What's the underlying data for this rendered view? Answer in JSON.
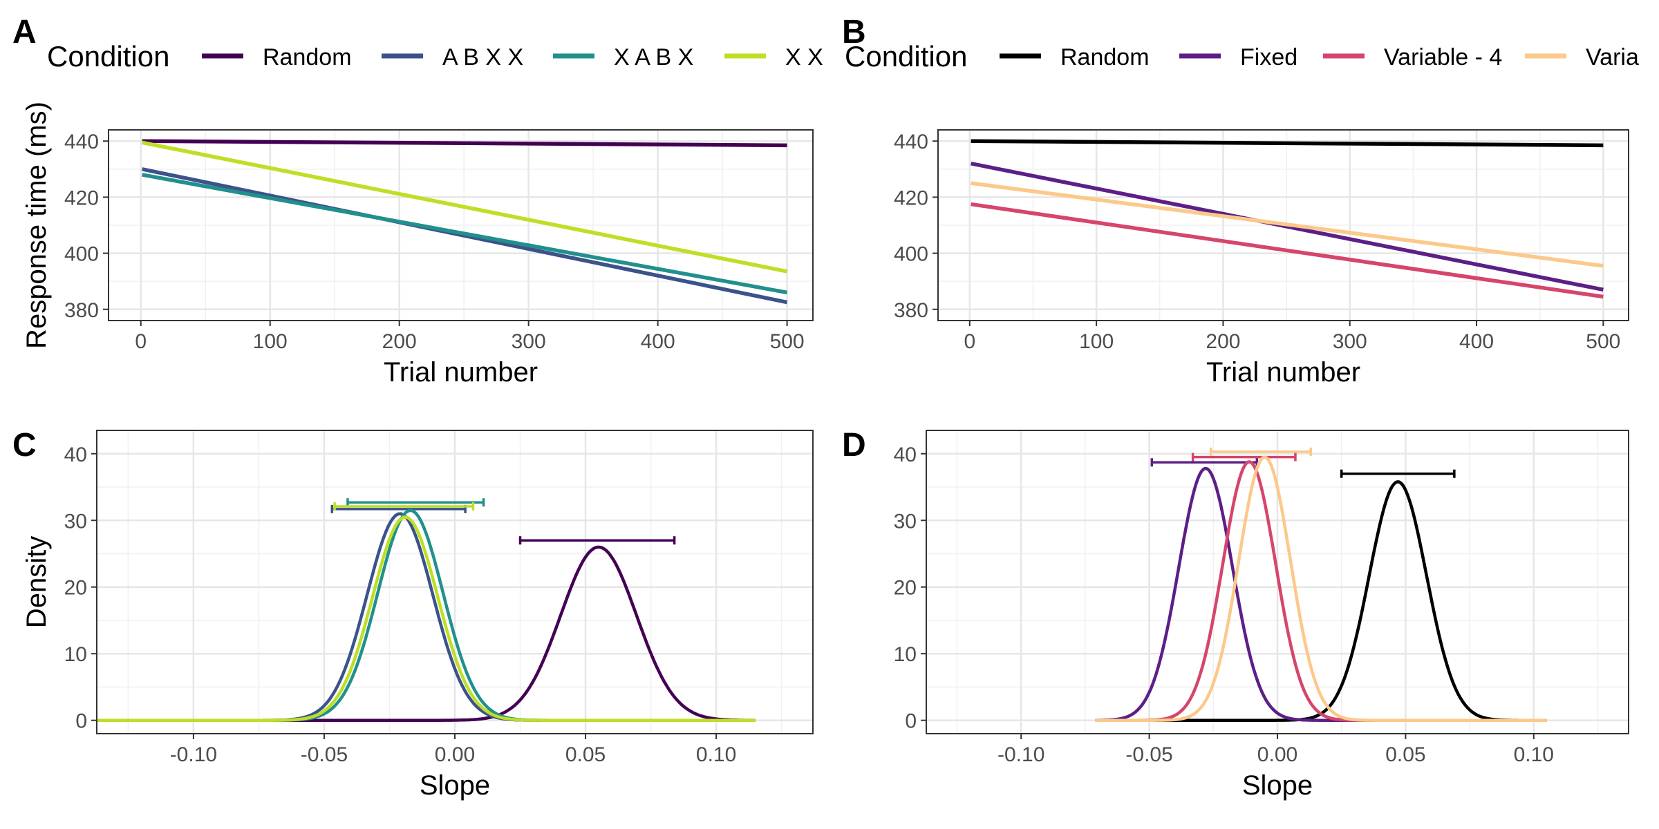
{
  "figure": {
    "panel_labels": [
      "A",
      "B",
      "C",
      "D"
    ],
    "legend_title": "Condition"
  },
  "chart_data": [
    {
      "panel": "A",
      "type": "line",
      "xlabel": "Trial number",
      "ylabel": "Response time (ms)",
      "xlim": [
        -25,
        520
      ],
      "ylim": [
        376,
        444
      ],
      "xticks": [
        0,
        100,
        200,
        300,
        400,
        500
      ],
      "xtick_labels": [
        "0",
        "100",
        "200",
        "300",
        "400",
        "500"
      ],
      "yticks": [
        380,
        400,
        420,
        440
      ],
      "ytick_labels": [
        "380",
        "400",
        "420",
        "440"
      ],
      "grid": true,
      "legend": {
        "title": "Condition",
        "placement": "top",
        "entries": [
          "Random",
          "A B X X",
          "X A B X",
          "X X"
        ]
      },
      "series": [
        {
          "name": "Random",
          "color": "#440154",
          "x": [
            1,
            500
          ],
          "y": [
            440,
            438.5
          ]
        },
        {
          "name": "A B X X",
          "color": "#3b528b",
          "x": [
            1,
            500
          ],
          "y": [
            430,
            382.5
          ]
        },
        {
          "name": "X A B X",
          "color": "#21908c",
          "x": [
            1,
            500
          ],
          "y": [
            428,
            386
          ]
        },
        {
          "name": "X X",
          "color": "#bddf26",
          "x": [
            1,
            500
          ],
          "y": [
            439.5,
            393.5
          ]
        }
      ]
    },
    {
      "panel": "B",
      "type": "line",
      "xlabel": "Trial number",
      "ylabel": "",
      "xlim": [
        -25,
        520
      ],
      "ylim": [
        376,
        444
      ],
      "xticks": [
        0,
        100,
        200,
        300,
        400,
        500
      ],
      "xtick_labels": [
        "0",
        "100",
        "200",
        "300",
        "400",
        "500"
      ],
      "yticks": [
        380,
        400,
        420,
        440
      ],
      "ytick_labels": [
        "380",
        "400",
        "420",
        "440"
      ],
      "grid": true,
      "legend": {
        "title": "Condition",
        "placement": "top",
        "entries": [
          "Random",
          "Fixed",
          "Variable - 4",
          "Varia"
        ]
      },
      "series": [
        {
          "name": "Random",
          "color": "#000000",
          "x": [
            1,
            500
          ],
          "y": [
            440,
            438.5
          ]
        },
        {
          "name": "Fixed",
          "color": "#5c1f87",
          "x": [
            1,
            500
          ],
          "y": [
            432,
            387
          ]
        },
        {
          "name": "Variable - 4",
          "color": "#d6456c",
          "x": [
            1,
            500
          ],
          "y": [
            417.5,
            384.5
          ]
        },
        {
          "name": "Varia",
          "color": "#fbc98a",
          "x": [
            1,
            500
          ],
          "y": [
            425,
            395.5
          ]
        }
      ]
    },
    {
      "panel": "C",
      "type": "line",
      "xlabel": "Slope",
      "ylabel": "Density",
      "xlim": [
        -0.137,
        0.137
      ],
      "ylim": [
        -2,
        43.5
      ],
      "xticks": [
        -0.1,
        -0.05,
        0,
        0.05,
        0.1
      ],
      "xtick_labels": [
        "-0.10",
        "-0.05",
        "0.00",
        "0.05",
        "0.10"
      ],
      "yticks": [
        0,
        10,
        20,
        30,
        40
      ],
      "ytick_labels": [
        "0",
        "10",
        "20",
        "30",
        "40"
      ],
      "grid": true,
      "x_range": [
        -0.137,
        0.115
      ],
      "series": [
        {
          "name": "Random",
          "color": "#440154",
          "mean": 0.055,
          "sd": 0.0145,
          "peak": 26,
          "interval": [
            0.025,
            0.084
          ],
          "interval_y": 27
        },
        {
          "name": "A B X X",
          "color": "#3b528b",
          "mean": -0.021,
          "sd": 0.0126,
          "peak": 31,
          "interval": [
            -0.047,
            0.004
          ],
          "interval_y": 31.7
        },
        {
          "name": "X A B X",
          "color": "#21908c",
          "mean": -0.017,
          "sd": 0.0125,
          "peak": 31.5,
          "interval": [
            -0.041,
            0.011
          ],
          "interval_y": 32.7
        },
        {
          "name": "X X",
          "color": "#bddf26",
          "mean": -0.019,
          "sd": 0.0125,
          "peak": 30.5,
          "interval": [
            -0.046,
            0.007
          ],
          "interval_y": 32.1
        }
      ]
    },
    {
      "panel": "D",
      "type": "line",
      "xlabel": "Slope",
      "ylabel": "",
      "xlim": [
        -0.137,
        0.137
      ],
      "ylim": [
        -2,
        43.5
      ],
      "xticks": [
        -0.1,
        -0.05,
        0,
        0.05,
        0.1
      ],
      "xtick_labels": [
        "-0.10",
        "-0.05",
        "0.00",
        "0.05",
        "0.10"
      ],
      "yticks": [
        0,
        10,
        20,
        30,
        40
      ],
      "ytick_labels": [
        "0",
        "10",
        "20",
        "30",
        "40"
      ],
      "grid": true,
      "x_range": [
        -0.071,
        0.105
      ],
      "series": [
        {
          "name": "Random",
          "color": "#000000",
          "mean": 0.047,
          "sd": 0.0112,
          "peak": 35.8,
          "interval": [
            0.025,
            0.069
          ],
          "interval_y": 37
        },
        {
          "name": "Fixed",
          "color": "#5c1f87",
          "mean": -0.028,
          "sd": 0.0105,
          "peak": 37.8,
          "interval": [
            -0.049,
            -0.008
          ],
          "interval_y": 38.7
        },
        {
          "name": "Variable - 4",
          "color": "#d6456c",
          "mean": -0.011,
          "sd": 0.0103,
          "peak": 38.8,
          "interval": [
            -0.033,
            0.007
          ],
          "interval_y": 39.5
        },
        {
          "name": "Varia",
          "color": "#fbc98a",
          "mean": -0.005,
          "sd": 0.0101,
          "peak": 39.5,
          "interval": [
            -0.026,
            0.013
          ],
          "interval_y": 40.3
        }
      ]
    }
  ]
}
